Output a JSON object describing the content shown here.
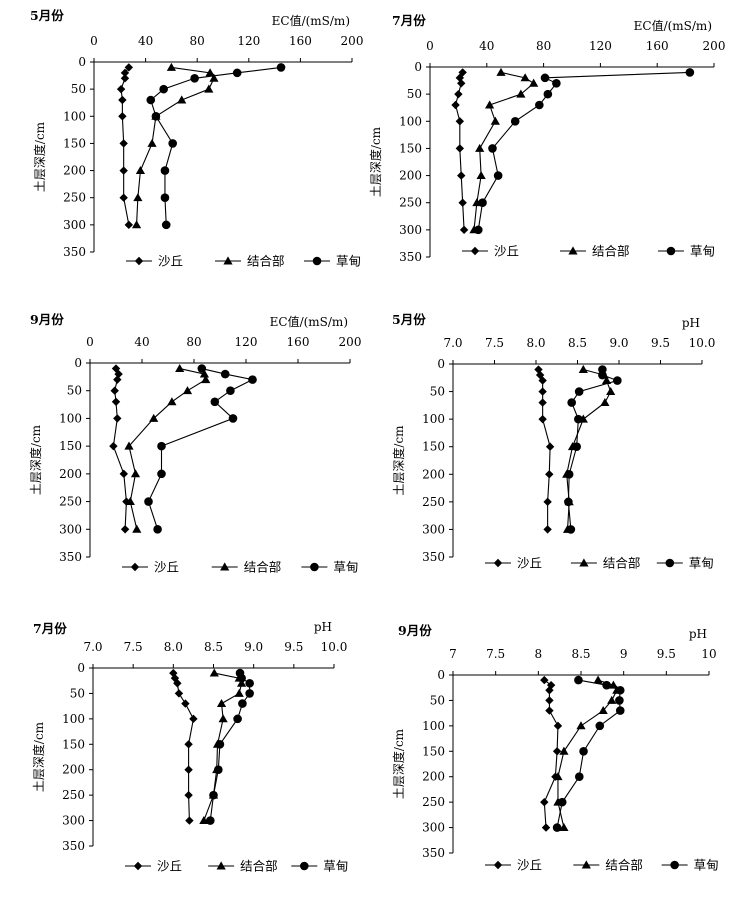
{
  "chart_data": [
    {
      "type": "line",
      "panel_label": "5月份",
      "xlabel": "EC值/(mS/m)",
      "ylabel": "土层深度/cm",
      "x_ticks": [
        "0",
        "40",
        "80",
        "120",
        "160",
        "200"
      ],
      "y_ticks": [
        "0",
        "50",
        "100",
        "150",
        "200",
        "250",
        "300",
        "350"
      ],
      "xlim": [
        0,
        200
      ],
      "ylim": [
        0,
        350
      ],
      "depths": [
        10,
        20,
        30,
        50,
        70,
        100,
        150,
        200,
        250,
        300
      ],
      "series": [
        {
          "name": "沙丘",
          "marker": "diamond",
          "values": [
            27,
            24,
            24,
            21,
            22,
            22,
            23,
            23,
            23,
            27
          ]
        },
        {
          "name": "结合部",
          "marker": "triangle",
          "values": [
            60,
            90,
            93,
            89,
            68,
            48,
            45,
            36,
            34,
            33
          ]
        },
        {
          "name": "草甸",
          "marker": "circle",
          "values": [
            145,
            111,
            78,
            54,
            44,
            48,
            61,
            55,
            55,
            56
          ]
        }
      ]
    },
    {
      "type": "line",
      "panel_label": "7月份",
      "xlabel": "EC值/(mS/m)",
      "ylabel": "土层深度/cm",
      "x_ticks": [
        "0",
        "40",
        "80",
        "120",
        "160",
        "200"
      ],
      "y_ticks": [
        "0",
        "50",
        "100",
        "150",
        "200",
        "250",
        "300",
        "350"
      ],
      "xlim": [
        0,
        200
      ],
      "ylim": [
        0,
        350
      ],
      "depths": [
        10,
        20,
        30,
        50,
        70,
        100,
        150,
        200,
        250,
        300
      ],
      "series": [
        {
          "name": "沙丘",
          "marker": "diamond",
          "values": [
            23,
            21,
            22,
            20,
            18,
            21,
            21,
            22,
            23,
            24
          ]
        },
        {
          "name": "结合部",
          "marker": "triangle",
          "values": [
            50,
            67,
            73,
            64,
            42,
            46,
            35,
            36,
            33,
            31
          ]
        },
        {
          "name": "草甸",
          "marker": "circle",
          "values": [
            183,
            81,
            89,
            83,
            77,
            60,
            44,
            48,
            37,
            34
          ]
        }
      ]
    },
    {
      "type": "line",
      "panel_label": "9月份",
      "xlabel": "EC值/(mS/m)",
      "ylabel": "土层深度/cm",
      "x_ticks": [
        "0",
        "40",
        "80",
        "120",
        "160",
        "200"
      ],
      "y_ticks": [
        "0",
        "50",
        "100",
        "150",
        "200",
        "250",
        "300",
        "350"
      ],
      "xlim": [
        0,
        200
      ],
      "ylim": [
        0,
        350
      ],
      "depths": [
        10,
        20,
        30,
        50,
        70,
        100,
        150,
        200,
        250,
        300
      ],
      "series": [
        {
          "name": "沙丘",
          "marker": "diamond",
          "values": [
            20,
            22,
            21,
            19,
            20,
            21,
            18,
            26,
            28,
            27
          ]
        },
        {
          "name": "结合部",
          "marker": "triangle",
          "values": [
            69,
            88,
            89,
            75,
            63,
            49,
            30,
            35,
            31,
            36
          ]
        },
        {
          "name": "草甸",
          "marker": "circle",
          "values": [
            86,
            104,
            125,
            108,
            96,
            110,
            55,
            55,
            45,
            52
          ]
        }
      ]
    },
    {
      "type": "line",
      "panel_label": "5月份",
      "xlabel": "pH",
      "ylabel": "土层深度/cm",
      "x_ticks": [
        "7.0",
        "7.5",
        "8.0",
        "8.5",
        "9.0",
        "9.5",
        "10.0"
      ],
      "y_ticks": [
        "0",
        "50",
        "100",
        "150",
        "200",
        "250",
        "300",
        "350"
      ],
      "xlim": [
        7.0,
        10.0
      ],
      "ylim": [
        0,
        350
      ],
      "depths": [
        10,
        20,
        30,
        50,
        70,
        100,
        150,
        200,
        250,
        300
      ],
      "series": [
        {
          "name": "沙丘",
          "marker": "diamond",
          "values": [
            8.03,
            8.05,
            8.08,
            8.08,
            8.08,
            8.08,
            8.17,
            8.16,
            8.14,
            8.14
          ]
        },
        {
          "name": "结合部",
          "marker": "triangle",
          "values": [
            8.57,
            8.82,
            8.85,
            8.9,
            8.83,
            8.57,
            8.44,
            8.37,
            8.4,
            8.38
          ]
        },
        {
          "name": "草甸",
          "marker": "circle",
          "values": [
            8.8,
            8.8,
            8.98,
            8.52,
            8.43,
            8.51,
            8.49,
            8.4,
            8.39,
            8.42
          ]
        }
      ]
    },
    {
      "type": "line",
      "panel_label": "7月份",
      "xlabel": "pH",
      "ylabel": "土层深度/cm",
      "x_ticks": [
        "7.0",
        "7.5",
        "8.0",
        "8.5",
        "9.0",
        "9.5",
        "10.0"
      ],
      "y_ticks": [
        "0",
        "50",
        "100",
        "150",
        "200",
        "250",
        "300",
        "350"
      ],
      "xlim": [
        7.0,
        10.0
      ],
      "ylim": [
        0,
        350
      ],
      "depths": [
        10,
        20,
        30,
        50,
        70,
        100,
        150,
        200,
        250,
        300
      ],
      "series": [
        {
          "name": "沙丘",
          "marker": "diamond",
          "values": [
            8.0,
            8.02,
            8.05,
            8.07,
            8.15,
            8.25,
            8.19,
            8.19,
            8.19,
            8.2
          ]
        },
        {
          "name": "结合部",
          "marker": "triangle",
          "values": [
            8.51,
            8.82,
            8.85,
            8.82,
            8.6,
            8.62,
            8.55,
            8.54,
            8.5,
            8.38
          ]
        },
        {
          "name": "草甸",
          "marker": "circle",
          "values": [
            8.83,
            8.85,
            8.95,
            8.95,
            8.86,
            8.8,
            8.58,
            8.56,
            8.5,
            8.46
          ]
        }
      ]
    },
    {
      "type": "line",
      "panel_label": "9月份",
      "xlabel": "pH",
      "ylabel": "土层深度/cm",
      "x_ticks": [
        "7",
        "7.5",
        "8",
        "8.5",
        "9",
        "9.5",
        "10"
      ],
      "y_ticks": [
        "0",
        "50",
        "100",
        "150",
        "200",
        "250",
        "300",
        "350"
      ],
      "xlim": [
        7.0,
        10.0
      ],
      "ylim": [
        0,
        350
      ],
      "depths": [
        10,
        20,
        30,
        50,
        70,
        100,
        150,
        200,
        250,
        300
      ],
      "series": [
        {
          "name": "沙丘",
          "marker": "diamond",
          "values": [
            8.07,
            8.15,
            8.13,
            8.13,
            8.13,
            8.23,
            8.22,
            8.2,
            8.07,
            8.09
          ]
        },
        {
          "name": "结合部",
          "marker": "triangle",
          "values": [
            8.7,
            8.88,
            8.92,
            8.86,
            8.76,
            8.5,
            8.3,
            8.23,
            8.23,
            8.3
          ]
        },
        {
          "name": "草甸",
          "marker": "circle",
          "values": [
            8.47,
            8.8,
            8.96,
            8.95,
            8.96,
            8.72,
            8.53,
            8.48,
            8.28,
            8.22
          ]
        }
      ]
    }
  ]
}
